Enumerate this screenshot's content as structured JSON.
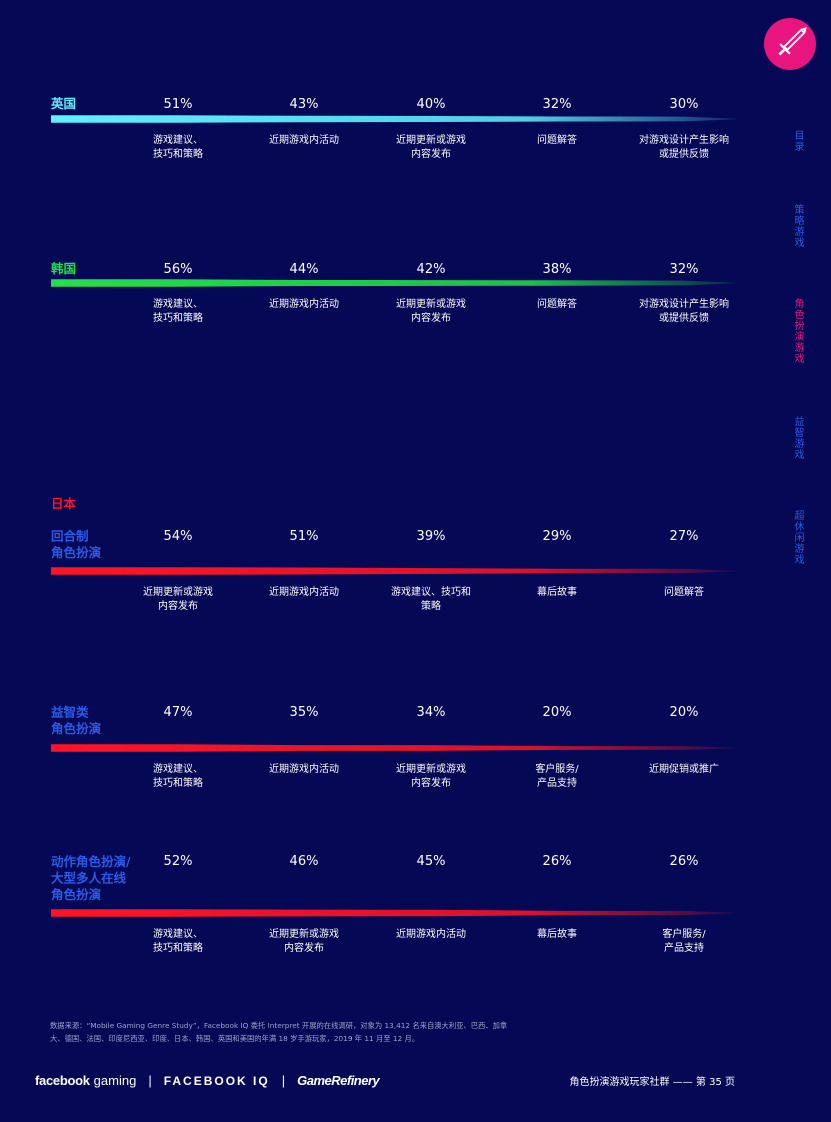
{
  "chart_data": [
    {
      "type": "bar",
      "section": "英国",
      "color": "#5ff0ff",
      "categories": [
        "游戏建议、\n技巧和策略",
        "近期游戏内活动",
        "近期更新或游戏\n内容发布",
        "问题解答",
        "对游戏设计产生影响\n或提供反馈"
      ],
      "values": [
        51,
        43,
        40,
        32,
        30
      ],
      "value_labels": [
        "51%",
        "43%",
        "40%",
        "32%",
        "30%"
      ]
    },
    {
      "type": "bar",
      "section": "韩国",
      "color": "#22e04a",
      "categories": [
        "游戏建议、\n技巧和策略",
        "近期游戏内活动",
        "近期更新或游戏\n内容发布",
        "问题解答",
        "对游戏设计产生影响\n或提供反馈"
      ],
      "values": [
        56,
        44,
        42,
        38,
        32
      ],
      "value_labels": [
        "56%",
        "44%",
        "42%",
        "38%",
        "32%"
      ]
    },
    {
      "type": "bar",
      "section": "日本",
      "subsection": "回合制\n角色扮演",
      "color": "#ff1424",
      "categories": [
        "近期更新或游戏\n内容发布",
        "近期游戏内活动",
        "游戏建议、技巧和\n策略",
        "幕后故事",
        "问题解答"
      ],
      "values": [
        54,
        51,
        39,
        29,
        27
      ],
      "value_labels": [
        "54%",
        "51%",
        "39%",
        "29%",
        "27%"
      ]
    },
    {
      "type": "bar",
      "subsection": "益智类\n角色扮演",
      "color": "#ff1424",
      "categories": [
        "游戏建议、\n技巧和策略",
        "近期游戏内活动",
        "近期更新或游戏\n内容发布",
        "客户服务/\n产品支持",
        "近期促销或推广"
      ],
      "values": [
        47,
        35,
        34,
        20,
        20
      ],
      "value_labels": [
        "47%",
        "35%",
        "34%",
        "20%",
        "20%"
      ]
    },
    {
      "type": "bar",
      "subsection": "动作角色扮演/\n大型多人在线\n角色扮演",
      "color": "#ff1424",
      "categories": [
        "游戏建议、\n技巧和策略",
        "近期更新或游戏\n内容发布",
        "近期游戏内活动",
        "幕后故事",
        "客户服务/\n产品支持"
      ],
      "values": [
        52,
        46,
        45,
        26,
        26
      ],
      "value_labels": [
        "52%",
        "46%",
        "45%",
        "26%",
        "26%"
      ]
    }
  ],
  "colors": {
    "background": "#040855",
    "heading_blue": "#2c5be8",
    "accent_pink": "#e8157e"
  },
  "nav": {
    "items": [
      {
        "label": "目录"
      },
      {
        "label": "策略游戏"
      },
      {
        "label": "角色扮演游戏",
        "active": true
      },
      {
        "label": "益智游戏"
      },
      {
        "label": "超休闲游戏"
      }
    ]
  },
  "logo": {
    "icon": "sword-icon"
  },
  "source": "数据来源：“Mobile Gaming Genre Study”，Facebook IQ 委托 Interpret 开展的在线调研，对象为 13,412 名来自澳大利亚、巴西、加拿大、德国、法国、印度尼西亚、印度、日本、韩国、英国和美国的年满 18 岁手游玩家，2019 年 11 月至 12 月。",
  "footer": {
    "brand_facebook": "facebook",
    "brand_gaming": "gaming",
    "separator": "|",
    "brand_iq": "FACEBOOK IQ",
    "brand_gamerefinery": "GameRefinery",
    "page_title": "角色扮演游戏玩家社群 —— 第 35 页"
  }
}
